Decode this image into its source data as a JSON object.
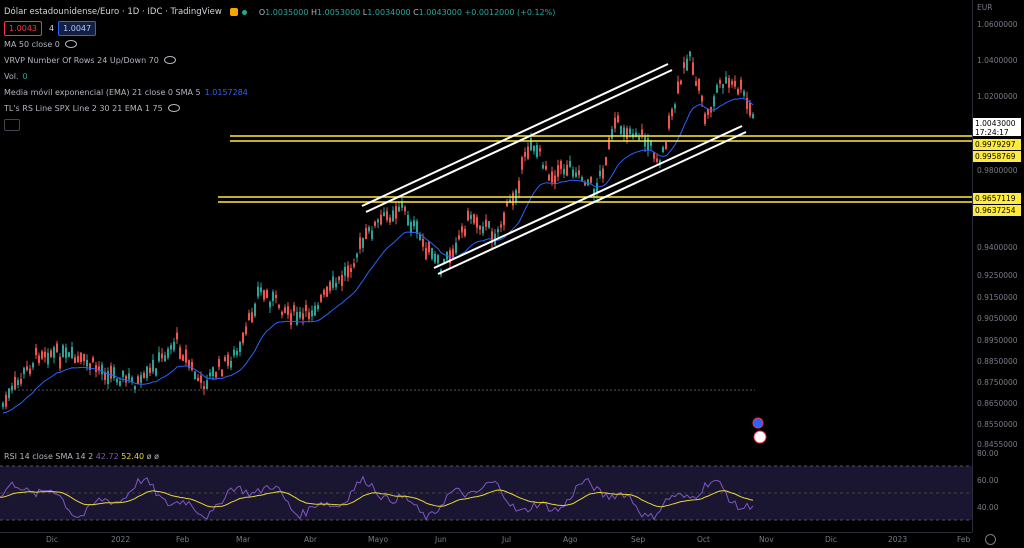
{
  "header": {
    "title": "Dólar estadounidense/Euro · 1D · IDC · TradingView",
    "ohlc": {
      "o_label": "O",
      "o": "1.0035000",
      "h_label": "H",
      "h": "1.0053000",
      "l_label": "L",
      "l": "1.0034000",
      "c_label": "C",
      "c": "1.0043000",
      "change": "+0.0012000 (+0.12%)"
    },
    "sell_price": "1.0043",
    "quantity": "4",
    "buy_price": "1.0047"
  },
  "indicators": [
    {
      "label": "MA 50 close 0",
      "value": ""
    },
    {
      "label": "VRVP Number Of Rows 24 Up/Down 70",
      "value": ""
    },
    {
      "label": "Vol.",
      "value": "0"
    },
    {
      "label": "Media móvil exponencial (EMA) 21 close 0 SMA 5",
      "value": "1.0157284"
    },
    {
      "label": "TL's RS Line SPX Line 2 30 21 EMA 1 75",
      "value": ""
    }
  ],
  "price_axis": {
    "currency": "EUR",
    "labels": [
      "1.0600000",
      "1.0400000",
      "1.0200000",
      "0.9800000",
      "0.9400000",
      "0.9250000",
      "0.9150000",
      "0.9050000",
      "0.8950000",
      "0.8850000",
      "0.8750000",
      "0.8650000",
      "0.8550000",
      "0.8455000"
    ],
    "yellow_tags": [
      "0.9979297",
      "0.9958769",
      "0.9657119",
      "0.9637254"
    ],
    "current_price": "1.0043000",
    "countdown": "17:24:17"
  },
  "time_axis": {
    "labels": [
      "Dic",
      "2022",
      "Feb",
      "Mar",
      "Abr",
      "Mayo",
      "Jun",
      "Jul",
      "Ago",
      "Sep",
      "Oct",
      "Nov",
      "Dic",
      "2023",
      "Feb"
    ]
  },
  "rsi": {
    "label": "RSI 14 close SMA 14 2",
    "value": "42.72",
    "sma_value": "52.40",
    "extra": "ø ø",
    "levels": [
      "80.00",
      "60.00",
      "40.00"
    ]
  },
  "colors": {
    "up": "#26a69a",
    "down": "#ef5350",
    "ema": "#2962ff",
    "channel": "#ffffff",
    "support": "#ffeb3b",
    "rsi": "#7e57c2",
    "rsi_sma": "#e8d53a"
  },
  "icons": {
    "alarm": "alarm-icon",
    "eye": "eye-icon",
    "gear": "gear-icon"
  }
}
